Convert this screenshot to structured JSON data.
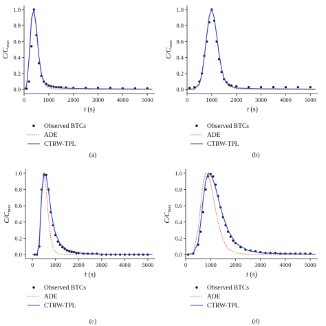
{
  "figure": {
    "legend_items": [
      "Observed BTCs",
      "ADE",
      "CTRW-TPL"
    ],
    "colors": {
      "observed": "#111111",
      "ade": "#e0413a",
      "ctrw": "#2b3fc9",
      "axis": "#222222"
    }
  },
  "chart_data": [
    {
      "type": "line",
      "panel_label": "(a)",
      "xlabel": "t (s)",
      "ylabel": "C/Cmax",
      "xlim": [
        0,
        5300
      ],
      "ylim": [
        -0.05,
        1.05
      ],
      "xticks": [
        0,
        1000,
        2000,
        3000,
        4000,
        5000
      ],
      "yticks": [
        0.0,
        0.2,
        0.4,
        0.6,
        0.8,
        1.0
      ],
      "grid": false,
      "legend_placement": "below",
      "series": [
        {
          "name": "Observed BTCs",
          "kind": "points",
          "x": [
            100,
            200,
            300,
            400,
            500,
            600,
            700,
            800,
            900,
            1000,
            1100,
            1200,
            1300,
            1400,
            1500,
            1700,
            2000,
            2500,
            3000,
            3500,
            4000,
            4500,
            5000
          ],
          "y": [
            0.01,
            0.1,
            0.54,
            1.0,
            0.68,
            0.33,
            0.17,
            0.1,
            0.07,
            0.05,
            0.04,
            0.035,
            0.03,
            0.03,
            0.03,
            0.025,
            0.02,
            0.02,
            0.02,
            0.02,
            0.015,
            0.015,
            0.015
          ]
        },
        {
          "name": "ADE",
          "kind": "dotted",
          "x": [
            0,
            100,
            200,
            300,
            400,
            500,
            600,
            700,
            800,
            900,
            1000,
            1200,
            1500,
            2000,
            3000,
            4000,
            5200
          ],
          "y": [
            0.0,
            0.05,
            0.4,
            0.9,
            1.0,
            0.75,
            0.4,
            0.18,
            0.08,
            0.04,
            0.02,
            0.01,
            0.005,
            0.0,
            0.0,
            0.0,
            0.0
          ]
        },
        {
          "name": "CTRW-TPL",
          "kind": "solid",
          "x": [
            0,
            100,
            200,
            300,
            400,
            500,
            600,
            700,
            800,
            900,
            1000,
            1200,
            1500,
            2000,
            3000,
            4000,
            5200
          ],
          "y": [
            0.0,
            0.04,
            0.38,
            0.88,
            1.0,
            0.78,
            0.42,
            0.2,
            0.1,
            0.06,
            0.04,
            0.03,
            0.02,
            0.015,
            0.01,
            0.008,
            0.006
          ]
        }
      ]
    },
    {
      "type": "line",
      "panel_label": "(b)",
      "xlabel": "t (s)",
      "ylabel": "C/Cmax",
      "xlim": [
        0,
        5300
      ],
      "ylim": [
        -0.05,
        1.05
      ],
      "xticks": [
        0,
        1000,
        2000,
        3000,
        4000,
        5000
      ],
      "yticks": [
        0.0,
        0.2,
        0.4,
        0.6,
        0.8,
        1.0
      ],
      "grid": false,
      "legend_placement": "below",
      "series": [
        {
          "name": "Observed BTCs",
          "kind": "points",
          "x": [
            100,
            300,
            500,
            600,
            700,
            800,
            900,
            1000,
            1100,
            1200,
            1300,
            1400,
            1500,
            1600,
            1700,
            1800,
            2000,
            2500,
            3000,
            3500,
            4000,
            4500,
            5000
          ],
          "y": [
            0.02,
            0.03,
            0.1,
            0.2,
            0.42,
            0.6,
            0.84,
            1.0,
            0.86,
            0.6,
            0.38,
            0.22,
            0.13,
            0.09,
            0.06,
            0.05,
            0.04,
            0.03,
            0.03,
            0.03,
            0.03,
            0.03,
            0.03
          ]
        },
        {
          "name": "ADE",
          "kind": "dotted",
          "x": [
            0,
            300,
            500,
            600,
            700,
            800,
            900,
            1000,
            1100,
            1200,
            1300,
            1400,
            1500,
            1700,
            2000,
            3000,
            5200
          ],
          "y": [
            0.0,
            0.0,
            0.06,
            0.18,
            0.4,
            0.68,
            0.92,
            1.0,
            0.9,
            0.68,
            0.44,
            0.26,
            0.14,
            0.04,
            0.01,
            0.0,
            0.0
          ]
        },
        {
          "name": "CTRW-TPL",
          "kind": "solid",
          "x": [
            0,
            300,
            500,
            600,
            700,
            800,
            900,
            1000,
            1100,
            1200,
            1300,
            1400,
            1500,
            1700,
            2000,
            3000,
            5200
          ],
          "y": [
            0.0,
            0.01,
            0.07,
            0.19,
            0.41,
            0.68,
            0.92,
            1.0,
            0.9,
            0.68,
            0.44,
            0.26,
            0.14,
            0.05,
            0.02,
            0.01,
            0.005
          ]
        }
      ]
    },
    {
      "type": "line",
      "panel_label": "(c)",
      "xlabel": "t (s)",
      "ylabel": "C/Cmax",
      "xlim": [
        -300,
        5300
      ],
      "ylim": [
        -0.05,
        1.05
      ],
      "xticks": [
        0,
        1000,
        2000,
        3000,
        4000,
        5000
      ],
      "yticks": [
        0.0,
        0.2,
        0.4,
        0.6,
        0.8,
        1.0
      ],
      "grid": false,
      "legend_placement": "below",
      "series": [
        {
          "name": "Observed BTCs",
          "kind": "points",
          "x": [
            100,
            200,
            300,
            400,
            500,
            600,
            700,
            800,
            900,
            1000,
            1100,
            1200,
            1300,
            1400,
            1500,
            1600,
            1700,
            1800,
            1900,
            2000,
            2200,
            2400,
            2600,
            2800,
            3000,
            3200,
            3400,
            3600,
            3800,
            4000,
            4200,
            4400,
            4600,
            4800,
            5000
          ],
          "y": [
            0.0,
            0.0,
            0.1,
            0.8,
            0.98,
            0.98,
            0.8,
            0.52,
            0.36,
            0.24,
            0.16,
            0.12,
            0.09,
            0.07,
            0.05,
            0.04,
            0.03,
            0.03,
            0.02,
            0.02,
            0.01,
            0.01,
            0.01,
            0.01,
            0.0,
            0.0,
            0.0,
            0.0,
            0.0,
            0.0,
            0.0,
            0.0,
            0.0,
            0.0,
            0.0
          ]
        },
        {
          "name": "ADE",
          "kind": "dotted",
          "x": [
            0,
            200,
            300,
            400,
            500,
            600,
            700,
            800,
            900,
            1000,
            1200,
            1500,
            2000,
            3000,
            5200
          ],
          "y": [
            0.0,
            0.0,
            0.2,
            0.8,
            1.0,
            0.8,
            0.45,
            0.2,
            0.08,
            0.03,
            0.0,
            0.0,
            0.0,
            0.0,
            0.0
          ]
        },
        {
          "name": "CTRW-TPL",
          "kind": "solid",
          "x": [
            0,
            200,
            300,
            400,
            500,
            600,
            700,
            800,
            900,
            1000,
            1200,
            1500,
            2000,
            2500,
            3000,
            4000,
            5200
          ],
          "y": [
            0.0,
            0.0,
            0.12,
            0.72,
            1.0,
            0.96,
            0.78,
            0.55,
            0.38,
            0.26,
            0.13,
            0.06,
            0.02,
            0.01,
            0.005,
            0.0,
            0.0
          ]
        }
      ]
    },
    {
      "type": "line",
      "panel_label": "(d)",
      "xlabel": "t (s)",
      "ylabel": "C/Cmax",
      "xlim": [
        0,
        5300
      ],
      "ylim": [
        -0.05,
        1.05
      ],
      "xticks": [
        0,
        1000,
        2000,
        3000,
        4000,
        5000
      ],
      "yticks": [
        0.0,
        0.2,
        0.4,
        0.6,
        0.8,
        1.0
      ],
      "grid": false,
      "legend_placement": "below",
      "series": [
        {
          "name": "Observed BTCs",
          "kind": "points",
          "x": [
            100,
            300,
            500,
            600,
            700,
            800,
            900,
            1000,
            1100,
            1200,
            1300,
            1400,
            1500,
            1600,
            1700,
            1800,
            1900,
            2000,
            2200,
            2400,
            2600,
            2800,
            3000,
            3200,
            3400,
            3600,
            3800,
            4000,
            4200,
            4400,
            4600,
            4800,
            5000
          ],
          "y": [
            0.0,
            0.01,
            0.12,
            0.28,
            0.52,
            0.8,
            0.96,
            0.99,
            0.96,
            0.86,
            0.72,
            0.58,
            0.46,
            0.36,
            0.28,
            0.22,
            0.17,
            0.14,
            0.09,
            0.06,
            0.05,
            0.04,
            0.03,
            0.02,
            0.02,
            0.02,
            0.01,
            0.01,
            0.01,
            0.01,
            0.01,
            0.01,
            0.01
          ]
        },
        {
          "name": "ADE",
          "kind": "dotted",
          "x": [
            0,
            300,
            500,
            600,
            700,
            800,
            900,
            1000,
            1100,
            1200,
            1300,
            1400,
            1500,
            1700,
            2000,
            2500,
            3000,
            4000,
            5200
          ],
          "y": [
            0.0,
            0.02,
            0.3,
            0.6,
            0.88,
            1.0,
            0.98,
            0.88,
            0.72,
            0.55,
            0.4,
            0.28,
            0.18,
            0.07,
            0.02,
            0.0,
            0.0,
            0.0,
            0.0
          ]
        },
        {
          "name": "CTRW-TPL",
          "kind": "solid",
          "x": [
            0,
            300,
            500,
            600,
            700,
            800,
            900,
            1000,
            1100,
            1200,
            1300,
            1400,
            1500,
            1700,
            2000,
            2500,
            3000,
            4000,
            5200
          ],
          "y": [
            0.0,
            0.01,
            0.15,
            0.38,
            0.68,
            0.9,
            1.0,
            0.98,
            0.92,
            0.82,
            0.7,
            0.58,
            0.47,
            0.3,
            0.14,
            0.05,
            0.02,
            0.01,
            0.005
          ]
        }
      ]
    }
  ]
}
